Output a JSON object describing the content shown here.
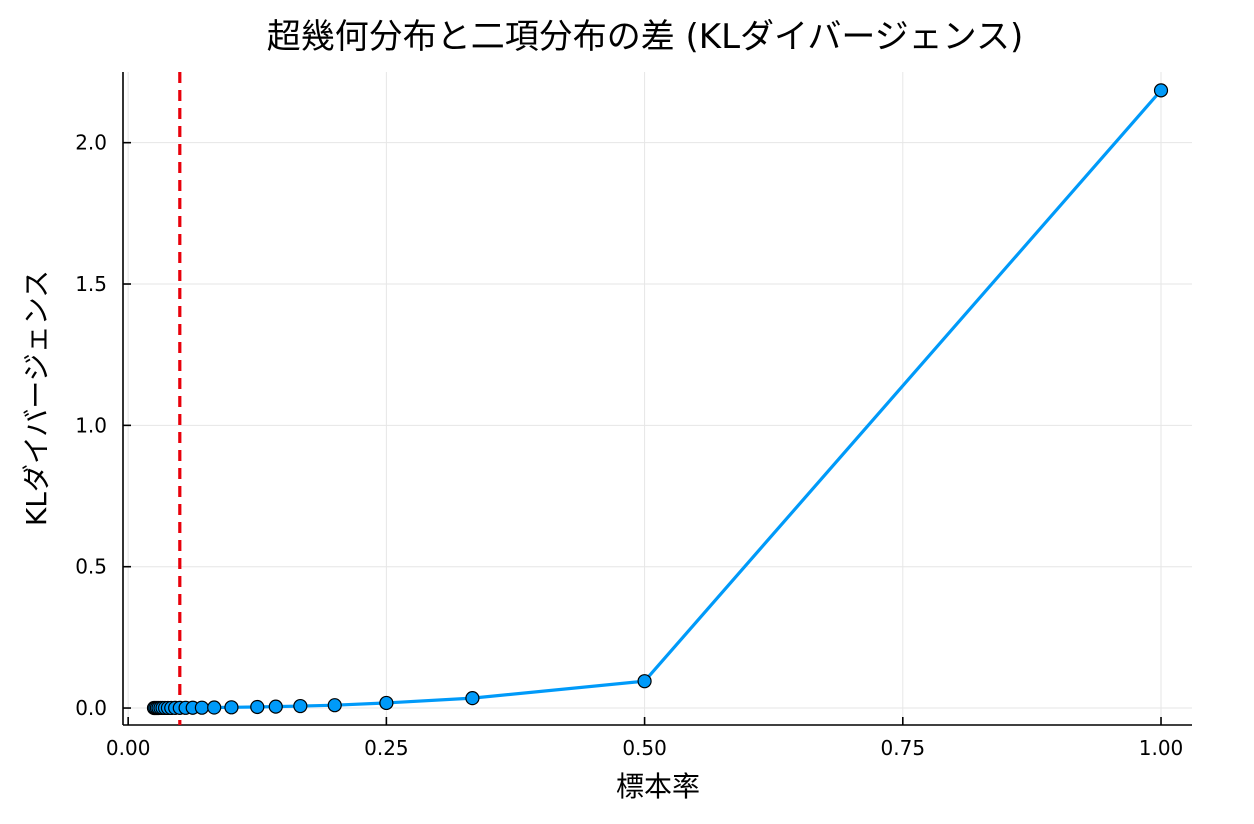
{
  "chart_data": {
    "type": "line",
    "title": "超幾何分布と二項分布の差 (KLダイバージェンス)",
    "xlabel": "標本率",
    "ylabel": "KLダイバージェンス",
    "xlim": [
      -0.005,
      1.03
    ],
    "ylim": [
      -0.06,
      2.25
    ],
    "xticks": [
      0.0,
      0.25,
      0.5,
      0.75,
      1.0
    ],
    "xtick_labels": [
      "0.00",
      "0.25",
      "0.50",
      "0.75",
      "1.00"
    ],
    "yticks": [
      0.0,
      0.5,
      1.0,
      1.5,
      2.0
    ],
    "ytick_labels": [
      "0.0",
      "0.5",
      "1.0",
      "1.5",
      "2.0"
    ],
    "grid": true,
    "legend": "none",
    "reference_line": {
      "orientation": "vertical",
      "x": 0.05,
      "style": "dashed",
      "color": "#e8000b"
    },
    "series": [
      {
        "color": "#009af9",
        "marker": "circle",
        "x": [
          0.025,
          0.0263,
          0.0278,
          0.0294,
          0.0313,
          0.0333,
          0.0357,
          0.0385,
          0.0417,
          0.0455,
          0.05,
          0.0556,
          0.0625,
          0.0714,
          0.0833,
          0.1,
          0.125,
          0.1429,
          0.1667,
          0.2,
          0.25,
          0.3333,
          0.5,
          1.0
        ],
        "values": [
          0.0002,
          0.0002,
          0.0002,
          0.0002,
          0.0003,
          0.0003,
          0.0003,
          0.0004,
          0.0004,
          0.0005,
          0.0006,
          0.0008,
          0.001,
          0.0013,
          0.0018,
          0.0025,
          0.0038,
          0.005,
          0.007,
          0.01,
          0.018,
          0.035,
          0.095,
          2.185
        ]
      }
    ]
  }
}
